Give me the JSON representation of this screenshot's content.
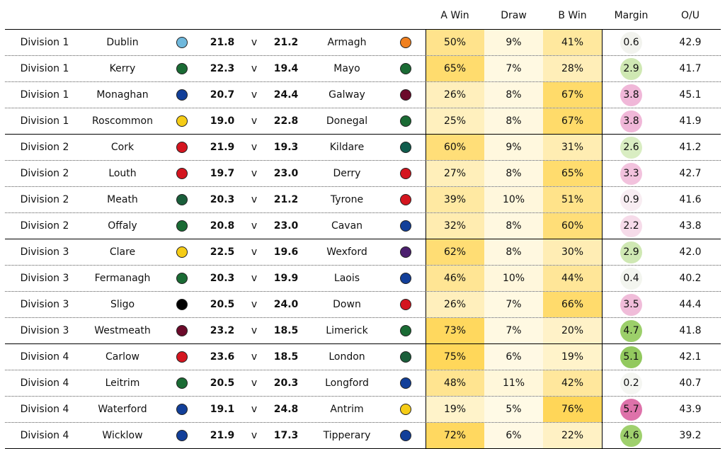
{
  "chart_data": {
    "type": "table",
    "columns": [
      "",
      "",
      "",
      "",
      "",
      "",
      "",
      "",
      "A Win",
      "Draw",
      "B Win",
      "Margin",
      "O/U"
    ],
    "rows": [
      {
        "division": "Division 1",
        "team_a": "Dublin",
        "color_a": "#6fb8dc",
        "score_a": "21.8",
        "v": "v",
        "score_b": "21.2",
        "team_b": "Armagh",
        "color_b": "#f08020",
        "a_win": "50%",
        "draw": "9%",
        "b_win": "41%",
        "margin": "0.6",
        "ou": "42.9",
        "a_win_value": 50,
        "draw_value": 9,
        "b_win_value": 41,
        "margin_value": 0.6,
        "margin_color": "#f2f3ee"
      },
      {
        "division": "Division 1",
        "team_a": "Kerry",
        "color_a": "#1a6b34",
        "score_a": "22.3",
        "v": "v",
        "score_b": "19.4",
        "team_b": "Mayo",
        "color_b": "#1a6b34",
        "a_win": "65%",
        "draw": "7%",
        "b_win": "28%",
        "margin": "2.9",
        "ou": "41.7",
        "a_win_value": 65,
        "draw_value": 7,
        "b_win_value": 28,
        "margin_value": 2.9,
        "margin_color": "#cfe8b3"
      },
      {
        "division": "Division 1",
        "team_a": "Monaghan",
        "color_a": "#123f99",
        "score_a": "20.7",
        "v": "v",
        "score_b": "24.4",
        "team_b": "Galway",
        "color_b": "#6b0a2a",
        "a_win": "26%",
        "draw": "8%",
        "b_win": "67%",
        "margin": "3.8",
        "ou": "45.1",
        "a_win_value": 26,
        "draw_value": 8,
        "b_win_value": 67,
        "margin_value": 3.8,
        "margin_color": "#f0b7d8"
      },
      {
        "division": "Division 1",
        "team_a": "Roscommon",
        "color_a": "#f5cc16",
        "score_a": "19.0",
        "v": "v",
        "score_b": "22.8",
        "team_b": "Donegal",
        "color_b": "#1a6b34",
        "a_win": "25%",
        "draw": "8%",
        "b_win": "67%",
        "margin": "3.8",
        "ou": "41.9",
        "a_win_value": 25,
        "draw_value": 8,
        "b_win_value": 67,
        "margin_value": 3.8,
        "margin_color": "#f0b7d8"
      },
      {
        "division": "Division 2",
        "team_a": "Cork",
        "color_a": "#d4151f",
        "score_a": "21.9",
        "v": "v",
        "score_b": "19.3",
        "team_b": "Kildare",
        "color_b": "#0f5c4d",
        "a_win": "60%",
        "draw": "9%",
        "b_win": "31%",
        "margin": "2.6",
        "ou": "41.2",
        "a_win_value": 60,
        "draw_value": 9,
        "b_win_value": 31,
        "margin_value": 2.6,
        "margin_color": "#d9edc2"
      },
      {
        "division": "Division 2",
        "team_a": "Louth",
        "color_a": "#d4151f",
        "score_a": "19.7",
        "v": "v",
        "score_b": "23.0",
        "team_b": "Derry",
        "color_b": "#d4151f",
        "a_win": "27%",
        "draw": "8%",
        "b_win": "65%",
        "margin": "3.3",
        "ou": "42.7",
        "a_win_value": 27,
        "draw_value": 8,
        "b_win_value": 65,
        "margin_value": 3.3,
        "margin_color": "#f2c2dd"
      },
      {
        "division": "Division 2",
        "team_a": "Meath",
        "color_a": "#1a5e3a",
        "score_a": "20.3",
        "v": "v",
        "score_b": "21.2",
        "team_b": "Tyrone",
        "color_b": "#d4151f",
        "a_win": "39%",
        "draw": "10%",
        "b_win": "51%",
        "margin": "0.9",
        "ou": "41.6",
        "a_win_value": 39,
        "draw_value": 10,
        "b_win_value": 51,
        "margin_value": 0.9,
        "margin_color": "#f8edf2"
      },
      {
        "division": "Division 2",
        "team_a": "Offaly",
        "color_a": "#1a6b34",
        "score_a": "20.8",
        "v": "v",
        "score_b": "23.0",
        "team_b": "Cavan",
        "color_b": "#123f99",
        "a_win": "32%",
        "draw": "8%",
        "b_win": "60%",
        "margin": "2.2",
        "ou": "43.8",
        "a_win_value": 32,
        "draw_value": 8,
        "b_win_value": 60,
        "margin_value": 2.2,
        "margin_color": "#f6dbe9"
      },
      {
        "division": "Division 3",
        "team_a": "Clare",
        "color_a": "#f5cc16",
        "score_a": "22.5",
        "v": "v",
        "score_b": "19.6",
        "team_b": "Wexford",
        "color_b": "#4b1f6e",
        "a_win": "62%",
        "draw": "8%",
        "b_win": "30%",
        "margin": "2.9",
        "ou": "42.0",
        "a_win_value": 62,
        "draw_value": 8,
        "b_win_value": 30,
        "margin_value": 2.9,
        "margin_color": "#cfe8b3"
      },
      {
        "division": "Division 3",
        "team_a": "Fermanagh",
        "color_a": "#1a6b34",
        "score_a": "20.3",
        "v": "v",
        "score_b": "19.9",
        "team_b": "Laois",
        "color_b": "#123f99",
        "a_win": "46%",
        "draw": "10%",
        "b_win": "44%",
        "margin": "0.4",
        "ou": "40.2",
        "a_win_value": 46,
        "draw_value": 10,
        "b_win_value": 44,
        "margin_value": 0.4,
        "margin_color": "#f3f5ef"
      },
      {
        "division": "Division 3",
        "team_a": "Sligo",
        "color_a": "#000000",
        "score_a": "20.5",
        "v": "v",
        "score_b": "24.0",
        "team_b": "Down",
        "color_b": "#d4151f",
        "a_win": "26%",
        "draw": "7%",
        "b_win": "66%",
        "margin": "3.5",
        "ou": "44.4",
        "a_win_value": 26,
        "draw_value": 7,
        "b_win_value": 66,
        "margin_value": 3.5,
        "margin_color": "#f0bcd9"
      },
      {
        "division": "Division 3",
        "team_a": "Westmeath",
        "color_a": "#6b0a2a",
        "score_a": "23.2",
        "v": "v",
        "score_b": "18.5",
        "team_b": "Limerick",
        "color_b": "#1a6b34",
        "a_win": "73%",
        "draw": "7%",
        "b_win": "20%",
        "margin": "4.7",
        "ou": "41.8",
        "a_win_value": 73,
        "draw_value": 7,
        "b_win_value": 20,
        "margin_value": 4.7,
        "margin_color": "#9ccf6a"
      },
      {
        "division": "Division 4",
        "team_a": "Carlow",
        "color_a": "#d4151f",
        "score_a": "23.6",
        "v": "v",
        "score_b": "18.5",
        "team_b": "London",
        "color_b": "#1a5e3a",
        "a_win": "75%",
        "draw": "6%",
        "b_win": "19%",
        "margin": "5.1",
        "ou": "42.1",
        "a_win_value": 75,
        "draw_value": 6,
        "b_win_value": 19,
        "margin_value": 5.1,
        "margin_color": "#92c95e"
      },
      {
        "division": "Division 4",
        "team_a": "Leitrim",
        "color_a": "#1a6b34",
        "score_a": "20.5",
        "v": "v",
        "score_b": "20.3",
        "team_b": "Longford",
        "color_b": "#123f99",
        "a_win": "48%",
        "draw": "11%",
        "b_win": "42%",
        "margin": "0.2",
        "ou": "40.7",
        "a_win_value": 48,
        "draw_value": 11,
        "b_win_value": 42,
        "margin_value": 0.2,
        "margin_color": "#f5f6f2"
      },
      {
        "division": "Division 4",
        "team_a": "Waterford",
        "color_a": "#123f99",
        "score_a": "19.1",
        "v": "v",
        "score_b": "24.8",
        "team_b": "Antrim",
        "color_b": "#f5cc16",
        "a_win": "19%",
        "draw": "5%",
        "b_win": "76%",
        "margin": "5.7",
        "ou": "43.9",
        "a_win_value": 19,
        "draw_value": 5,
        "b_win_value": 76,
        "margin_value": 5.7,
        "margin_color": "#de72aa"
      },
      {
        "division": "Division 4",
        "team_a": "Wicklow",
        "color_a": "#123f99",
        "score_a": "21.9",
        "v": "v",
        "score_b": "17.3",
        "team_b": "Tipperary",
        "color_b": "#123f99",
        "a_win": "72%",
        "draw": "6%",
        "b_win": "22%",
        "margin": "4.6",
        "ou": "39.2",
        "a_win_value": 72,
        "draw_value": 6,
        "b_win_value": 22,
        "margin_value": 4.6,
        "margin_color": "#9fd06d"
      }
    ]
  }
}
